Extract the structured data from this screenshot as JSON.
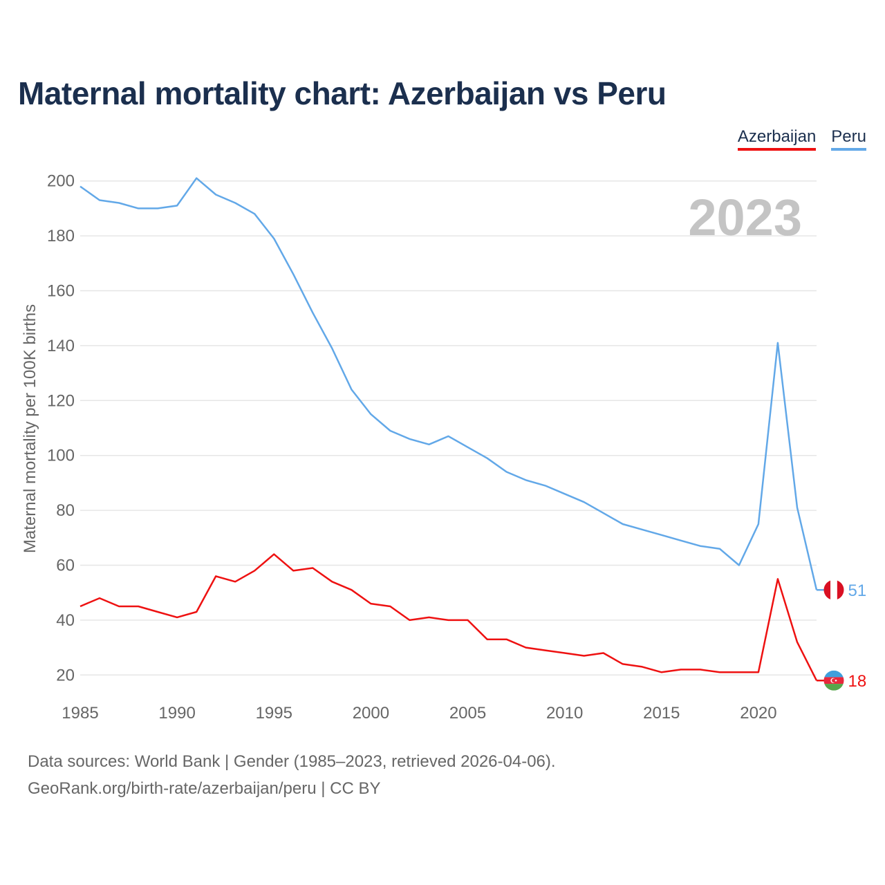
{
  "title": "Maternal mortality chart: Azerbaijan vs Peru",
  "legend": [
    {
      "label": "Azerbaijan",
      "color": "#ee1111"
    },
    {
      "label": "Peru",
      "color": "#62a8e8"
    }
  ],
  "year_watermark": "2023",
  "footer": {
    "source": "Data sources: World Bank | Gender (1985–2023, retrieved 2026-04-06).",
    "url": "GeoRank.org/birth-rate/azerbaijan/peru | CC BY"
  },
  "chart_data": {
    "type": "line",
    "title": "Maternal mortality chart: Azerbaijan vs Peru",
    "xlabel": "",
    "ylabel": "Maternal mortality per 100K births",
    "xlim": [
      1985,
      2023
    ],
    "ylim": [
      10,
      210
    ],
    "x_ticks": [
      1985,
      1990,
      1995,
      2000,
      2005,
      2010,
      2015,
      2020
    ],
    "y_ticks": [
      20,
      40,
      60,
      80,
      100,
      120,
      140,
      160,
      180,
      200
    ],
    "grid": true,
    "x": [
      1985,
      1986,
      1987,
      1988,
      1989,
      1990,
      1991,
      1992,
      1993,
      1994,
      1995,
      1996,
      1997,
      1998,
      1999,
      2000,
      2001,
      2002,
      2003,
      2004,
      2005,
      2006,
      2007,
      2008,
      2009,
      2010,
      2011,
      2012,
      2013,
      2014,
      2015,
      2016,
      2017,
      2018,
      2019,
      2020,
      2021,
      2022,
      2023
    ],
    "series": [
      {
        "name": "Peru",
        "color": "#62a8e8",
        "end_label": "51",
        "flag": "peru-flag",
        "values": [
          198,
          193,
          192,
          190,
          190,
          191,
          201,
          195,
          192,
          188,
          179,
          166,
          152,
          139,
          124,
          115,
          109,
          106,
          104,
          107,
          103,
          99,
          94,
          91,
          89,
          86,
          83,
          79,
          75,
          73,
          71,
          69,
          67,
          66,
          60,
          75,
          141,
          81,
          51
        ]
      },
      {
        "name": "Azerbaijan",
        "color": "#ee1111",
        "end_label": "18",
        "flag": "azerbaijan-flag",
        "values": [
          45,
          48,
          45,
          45,
          43,
          41,
          43,
          56,
          54,
          58,
          64,
          58,
          59,
          54,
          51,
          46,
          45,
          40,
          41,
          40,
          40,
          33,
          33,
          30,
          29,
          28,
          27,
          28,
          24,
          23,
          21,
          22,
          22,
          21,
          21,
          21,
          55,
          32,
          18
        ]
      }
    ]
  }
}
